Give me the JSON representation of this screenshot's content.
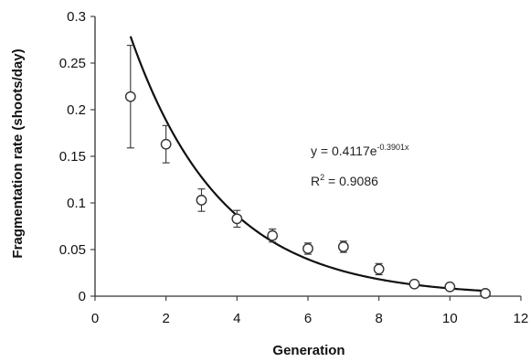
{
  "chart_data": {
    "type": "scatter",
    "title": "",
    "xlabel": "Generation",
    "ylabel": "Fragmentation rate (shoots/day)",
    "xlim": [
      0,
      12
    ],
    "ylim": [
      0,
      0.3
    ],
    "xticks": [
      0,
      2,
      4,
      6,
      8,
      10,
      12
    ],
    "yticks": [
      0,
      0.05,
      0.1,
      0.15,
      0.2,
      0.25,
      0.3
    ],
    "xtick_labels": [
      "0",
      "2",
      "4",
      "6",
      "8",
      "10",
      "12"
    ],
    "ytick_labels": [
      "0",
      "0.05",
      "0.1",
      "0.15",
      "0.2",
      "0.25",
      "0.3"
    ],
    "grid": false,
    "legend": false,
    "series": [
      {
        "points": [
          {
            "x": 1,
            "y": 0.214,
            "err": 0.055
          },
          {
            "x": 2,
            "y": 0.163,
            "err": 0.02
          },
          {
            "x": 3,
            "y": 0.103,
            "err": 0.012
          },
          {
            "x": 4,
            "y": 0.083,
            "err": 0.009
          },
          {
            "x": 5,
            "y": 0.065,
            "err": 0.007
          },
          {
            "x": 6,
            "y": 0.051,
            "err": 0.006
          },
          {
            "x": 7,
            "y": 0.053,
            "err": 0.006
          },
          {
            "x": 8,
            "y": 0.029,
            "err": 0.006
          },
          {
            "x": 9,
            "y": 0.013,
            "err": 0.003
          },
          {
            "x": 10,
            "y": 0.01,
            "err": 0.002
          },
          {
            "x": 11,
            "y": 0.003,
            "err": 0.001
          }
        ]
      }
    ],
    "trendline": {
      "type": "exponential",
      "a": 0.4117,
      "b": -0.3901,
      "x_range": [
        1,
        11
      ],
      "equation_prefix": "y = 0.4117e",
      "equation_exponent": "-0.3901x",
      "r2_prefix": "R",
      "r2_exponent": "2",
      "r2_value": " = 0.9086"
    },
    "colors": {
      "axis": "#333333",
      "marker_edge": "#333333",
      "marker_fill": "#ffffff",
      "trend": "#111111"
    }
  }
}
